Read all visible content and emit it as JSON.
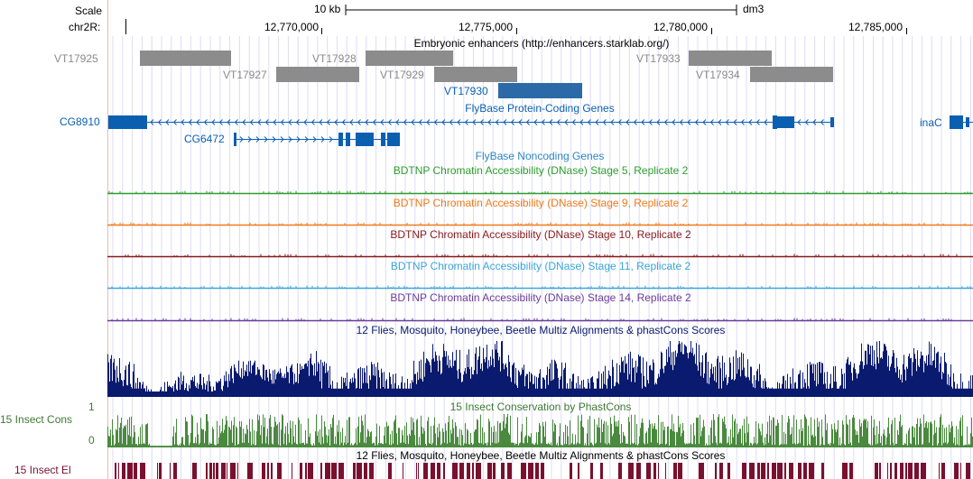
{
  "scale": {
    "label": "Scale",
    "bar_label": "10 kb",
    "assembly": "dm3"
  },
  "ruler": {
    "chrom_label": "chr2R:",
    "ticks": [
      "12,770,000",
      "12,775,000",
      "12,780,000",
      "12,785,000"
    ]
  },
  "tracks": {
    "enhancers": {
      "title": "Embryonic enhancers (http://enhancers.starklab.org/)",
      "items": [
        "VT17925",
        "VT17927",
        "VT17928",
        "VT17929",
        "VT17930",
        "VT17933",
        "VT17934"
      ],
      "color_gray": "#8c8c8c",
      "color_highlight": "#2b6aa6"
    },
    "coding_genes": {
      "title": "FlyBase Protein-Coding Genes",
      "genes": [
        "CG8910",
        "CG6472",
        "inaC"
      ],
      "color": "#0b5fb0"
    },
    "noncoding_genes": {
      "title": "FlyBase Noncoding Genes"
    },
    "dnase": [
      {
        "title": "BDTNP Chromatin Accessibility (DNase) Stage 5, Replicate 2",
        "color": "#2e9e2e"
      },
      {
        "title": "BDTNP Chromatin Accessibility (DNase) Stage 9, Replicate 2",
        "color": "#f07a1a"
      },
      {
        "title": "BDTNP Chromatin Accessibility (DNase) Stage 10, Replicate 2",
        "color": "#8b1a1a"
      },
      {
        "title": "BDTNP Chromatin Accessibility (DNase) Stage 11, Replicate 2",
        "color": "#3aa6d8"
      },
      {
        "title": "BDTNP Chromatin Accessibility (DNase) Stage 14, Replicate 2",
        "color": "#6a3d9a"
      }
    ],
    "multiz": {
      "title": "12 Flies, Mosquito, Honeybee, Beetle Multiz Alignments & phastCons Scores",
      "color": "#0a1a6e"
    },
    "phastcons": {
      "title": "15 Insect Conservation by PhastCons",
      "side_label": "15 Insect Cons",
      "y_max": "1",
      "y_min": "0",
      "color": "#4a8a3e"
    },
    "elements": {
      "title": "12 Flies, Mosquito, Honeybee, Beetle Multiz Alignments & phastCons Scores",
      "side_label": "15 Insect El",
      "color": "#7a1030"
    }
  }
}
